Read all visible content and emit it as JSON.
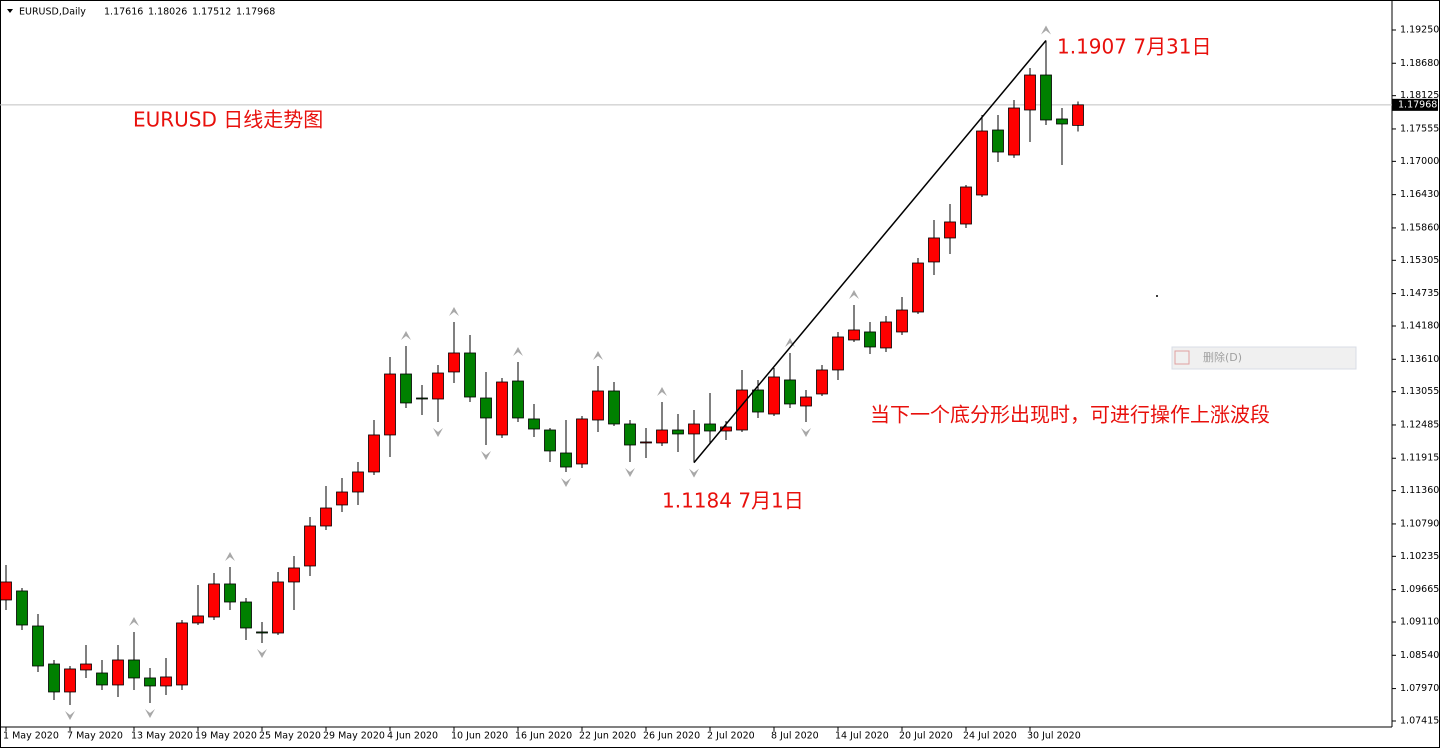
{
  "chart_data": {
    "type": "candlestick",
    "symbol": "EURUSD,Daily",
    "header_values": [
      "1.17616",
      "1.18026",
      "1.17512",
      "1.17968"
    ],
    "categories": [
      "1 May 2020",
      null,
      null,
      null,
      "7 May 2020",
      null,
      null,
      null,
      "13 May 2020",
      null,
      null,
      null,
      "19 May 2020",
      null,
      null,
      null,
      "25 May 2020",
      null,
      null,
      null,
      "29 May 2020",
      null,
      null,
      null,
      "4 Jun 2020",
      null,
      null,
      null,
      "10 Jun 2020",
      null,
      null,
      null,
      "16 Jun 2020",
      null,
      null,
      null,
      "22 Jun 2020",
      null,
      null,
      null,
      "26 Jun 2020",
      null,
      null,
      null,
      "2 Jul 2020",
      null,
      null,
      null,
      "8 Jul 2020",
      null,
      null,
      null,
      "14 Jul 2020",
      null,
      null,
      null,
      "20 Jul 2020",
      null,
      null,
      null,
      "24 Jul 2020",
      null,
      null,
      null,
      "30 Jul 2020",
      null,
      null,
      null
    ],
    "open": [
      1.09488,
      1.09642,
      1.09042,
      1.08391,
      1.07912,
      1.08289,
      1.08237,
      1.08032,
      1.0846,
      1.08152,
      1.08015,
      1.08032,
      1.09094,
      1.09196,
      1.09762,
      1.09453,
      1.0894,
      1.08922,
      1.09796,
      1.1007,
      1.10755,
      1.11115,
      1.11337,
      1.1168,
      1.12314,
      1.13358,
      1.12947,
      1.1293,
      1.13393,
      1.13718,
      1.12947,
      1.12314,
      1.13238,
      1.12588,
      1.12399,
      1.12005,
      1.11817,
      1.1257,
      1.13067,
      1.12502,
      1.12177,
      1.12177,
      1.12399,
      1.12331,
      1.12502,
      1.12382,
      1.12399,
      1.13084,
      1.12673,
      1.13256,
      1.1281,
      1.13016,
      1.13427,
      1.13941,
      1.14078,
      1.13804,
      1.14078,
      1.1442,
      1.15277,
      1.15688,
      1.15927,
      1.16424,
      1.17537,
      1.17109,
      1.1788,
      1.18479,
      1.17726,
      1.17616
    ],
    "high": [
      1.10087,
      1.09693,
      1.09248,
      1.0846,
      1.08357,
      1.08717,
      1.0846,
      1.08717,
      1.0894,
      1.08323,
      1.08494,
      1.09145,
      1.09745,
      1.0995,
      1.10053,
      1.09522,
      1.09111,
      1.09967,
      1.10241,
      1.10909,
      1.1144,
      1.11577,
      1.11851,
      1.1257,
      1.13649,
      1.13838,
      1.1317,
      1.13512,
      1.14249,
      1.14026,
      1.13393,
      1.1329,
      1.13564,
      1.12845,
      1.12433,
      1.1257,
      1.12639,
      1.13495,
      1.13221,
      1.1257,
      1.12433,
      1.12879,
      1.12673,
      1.12742,
      1.13033,
      1.12553,
      1.13427,
      1.13256,
      1.13461,
      1.13718,
      1.13084,
      1.13512,
      1.14078,
      1.1454,
      1.14249,
      1.14352,
      1.14677,
      1.15345,
      1.15996,
      1.1627,
      1.16595,
      1.17794,
      1.17794,
      1.18051,
      1.18599,
      1.1907,
      1.17914,
      1.18026
    ],
    "low": [
      1.09316,
      1.08974,
      1.08254,
      1.07775,
      1.07689,
      1.08152,
      1.07946,
      1.07826,
      1.07946,
      1.07724,
      1.07861,
      1.07946,
      1.09059,
      1.09145,
      1.09316,
      1.08803,
      1.08751,
      1.08888,
      1.09316,
      1.09899,
      1.10686,
      1.10995,
      1.11115,
      1.11628,
      1.11937,
      1.12776,
      1.12656,
      1.12536,
      1.13204,
      1.12879,
      1.12142,
      1.12262,
      1.12536,
      1.12279,
      1.11851,
      1.1168,
      1.11748,
      1.12365,
      1.12468,
      1.11851,
      1.1192,
      1.12125,
      1.12022,
      1.1184,
      1.12177,
      1.12228,
      1.12365,
      1.12605,
      1.12639,
      1.12776,
      1.12536,
      1.12982,
      1.13256,
      1.13906,
      1.13701,
      1.13735,
      1.14026,
      1.14386,
      1.15054,
      1.15414,
      1.15859,
      1.1639,
      1.16989,
      1.1706,
      1.17332,
      1.17623,
      1.16938,
      1.17512
    ],
    "close": [
      1.09796,
      1.09059,
      1.08357,
      1.07912,
      1.08306,
      1.08391,
      1.08032,
      1.0846,
      1.08152,
      1.08015,
      1.08169,
      1.09094,
      1.09214,
      1.09762,
      1.09453,
      1.09008,
      1.08922,
      1.09796,
      1.10036,
      1.10755,
      1.11063,
      1.11337,
      1.1168,
      1.12314,
      1.13358,
      1.12862,
      1.1293,
      1.13375,
      1.13718,
      1.12964,
      1.12605,
      1.13221,
      1.12605,
      1.12416,
      1.1204,
      1.11765,
      1.12588,
      1.13067,
      1.12502,
      1.12142,
      1.12194,
      1.12399,
      1.12331,
      1.12502,
      1.12382,
      1.12451,
      1.13084,
      1.12707,
      1.13307,
      1.12845,
      1.12964,
      1.13427,
      1.13992,
      1.14112,
      1.13821,
      1.14249,
      1.14454,
      1.15259,
      1.15688,
      1.15962,
      1.16561,
      1.1752,
      1.1716,
      1.17914,
      1.18479,
      1.17709,
      1.1764,
      1.17968
    ],
    "up_color": "#ff0000",
    "down_color": "#008000",
    "ylim": [
      1.07312,
      1.19678
    ],
    "yticks": [
      {
        "value": 1.07415,
        "label": "1.07415"
      },
      {
        "value": 1.0797,
        "label": "1.07970"
      },
      {
        "value": 1.0854,
        "label": "1.08540"
      },
      {
        "value": 1.0911,
        "label": "1.09110"
      },
      {
        "value": 1.09665,
        "label": "1.09665"
      },
      {
        "value": 1.10235,
        "label": "1.10235"
      },
      {
        "value": 1.1079,
        "label": "1.10790"
      },
      {
        "value": 1.1136,
        "label": "1.11360"
      },
      {
        "value": 1.11915,
        "label": "1.11915"
      },
      {
        "value": 1.12485,
        "label": "1.12485"
      },
      {
        "value": 1.13055,
        "label": "1.13055"
      },
      {
        "value": 1.1361,
        "label": "1.13610"
      },
      {
        "value": 1.1418,
        "label": "1.14180"
      },
      {
        "value": 1.14735,
        "label": "1.14735"
      },
      {
        "value": 1.15305,
        "label": "1.15305"
      },
      {
        "value": 1.1586,
        "label": "1.15860"
      },
      {
        "value": 1.1643,
        "label": "1.16430"
      },
      {
        "value": 1.17,
        "label": "1.17000"
      },
      {
        "value": 1.17555,
        "label": "1.17555"
      },
      {
        "value": 1.18125,
        "label": "1.18125"
      },
      {
        "value": 1.1868,
        "label": "1.18680"
      },
      {
        "value": 1.1925,
        "label": "1.19250"
      }
    ],
    "current_price": {
      "value": 1.17968,
      "label": "1.17968"
    },
    "title": "EURUSD 日线走势图",
    "annotations": [
      "1.1907  7月31日",
      "1.1184  7月1日",
      "当下一个底分形出现时，可进行操作上涨波段"
    ]
  },
  "context_menu": {
    "item": "删除(D)"
  }
}
